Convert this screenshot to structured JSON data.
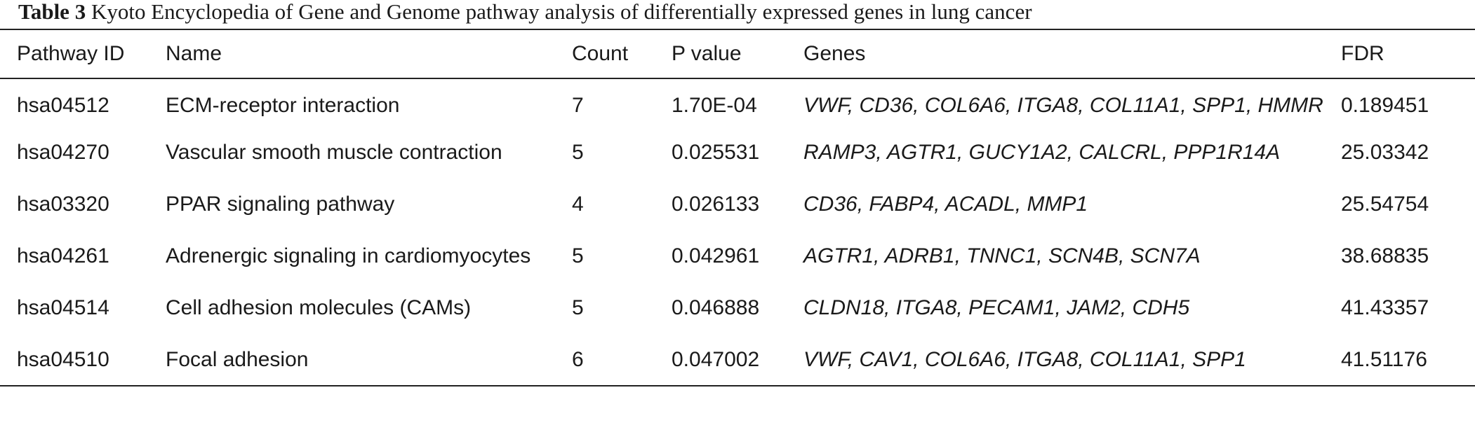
{
  "caption": {
    "label": "Table 3",
    "text": "Kyoto Encyclopedia of Gene and Genome pathway analysis of differentially expressed genes in lung cancer"
  },
  "table": {
    "headers": [
      "Pathway ID",
      "Name",
      "Count",
      "P value",
      "Genes",
      "FDR"
    ],
    "rows": [
      [
        "hsa04512",
        "ECM-receptor interaction",
        "7",
        "1.70E-04",
        "VWF, CD36, COL6A6, ITGA8, COL11A1, SPP1, HMMR",
        "0.189451"
      ],
      [
        "hsa04270",
        "Vascular smooth muscle contraction",
        "5",
        "0.025531",
        "RAMP3, AGTR1, GUCY1A2, CALCRL, PPP1R14A",
        "25.03342"
      ],
      [
        "hsa03320",
        "PPAR signaling pathway",
        "4",
        "0.026133",
        "CD36, FABP4, ACADL, MMP1",
        "25.54754"
      ],
      [
        "hsa04261",
        "Adrenergic signaling in cardiomyocytes",
        "5",
        "0.042961",
        "AGTR1, ADRB1, TNNC1, SCN4B, SCN7A",
        "38.68835"
      ],
      [
        "hsa04514",
        "Cell adhesion molecules (CAMs)",
        "5",
        "0.046888",
        "CLDN18, ITGA8, PECAM1, JAM2, CDH5",
        "41.43357"
      ],
      [
        "hsa04510",
        "Focal adhesion",
        "6",
        "0.047002",
        "VWF, CAV1, COL6A6, ITGA8, COL11A1, SPP1",
        "41.51176"
      ]
    ]
  }
}
